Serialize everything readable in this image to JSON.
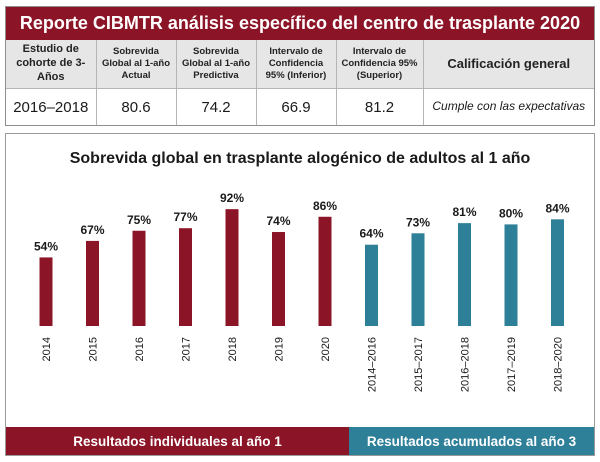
{
  "report": {
    "title": "Reporte CIBMTR análisis específico del centro de trasplante 2020",
    "headers": [
      "Estudio de cohorte de 3-Años",
      "Sobrevida Global al 1-año Actual",
      "Sobrevida Global al 1-año Predictiva",
      "Intervalo de Confidencia 95% (Inferior)",
      "Intervalo de Confidencia 95% (Superior)",
      "Calificación general"
    ],
    "row": [
      "2016–2018",
      "80.6",
      "74.2",
      "66.9",
      "81.2",
      "Cumple con las expectativas"
    ]
  },
  "chart_data": {
    "type": "bar",
    "title": "Sobrevida global en trasplante alogénico de adultos al 1 año",
    "xlabel": "",
    "ylabel": "",
    "ylim": [
      0,
      100
    ],
    "grid": false,
    "categories": [
      "2014",
      "2015",
      "2016",
      "2017",
      "2018",
      "2019",
      "2020",
      "2014–2016",
      "2015–2017",
      "2016–2018",
      "2017–2019",
      "2018–2020"
    ],
    "series": [
      {
        "values": [
          54,
          67,
          75,
          77,
          92,
          74,
          86,
          null,
          null,
          null,
          null,
          null
        ],
        "color": "#8c1427"
      },
      {
        "values": [
          null,
          null,
          null,
          null,
          null,
          null,
          null,
          64,
          73,
          81,
          80,
          84
        ],
        "color": "#2e7f98"
      }
    ],
    "value_labels": [
      "54%",
      "67%",
      "75%",
      "77%",
      "92%",
      "74%",
      "86%",
      "64%",
      "73%",
      "81%",
      "80%",
      "84%"
    ],
    "legend": [
      {
        "label": "Resultados individuales al año 1",
        "color": "#8c1427"
      },
      {
        "label": "Resultados acumulados al año 3",
        "color": "#2e7f98"
      }
    ],
    "legend_position": "bottom"
  }
}
